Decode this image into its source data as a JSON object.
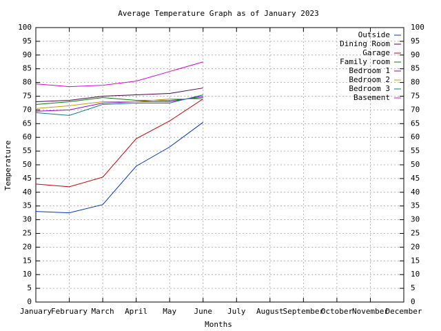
{
  "chart_data": {
    "type": "line",
    "title": "Average Temperature Graph as of January 2023",
    "x_label": "Months",
    "y_label": "Temperature",
    "categories": [
      "January",
      "February",
      "March",
      "April",
      "May",
      "June",
      "July",
      "August",
      "September",
      "October",
      "November",
      "December"
    ],
    "ylim": [
      0,
      100
    ],
    "yticks": [
      0,
      5,
      10,
      15,
      20,
      25,
      30,
      35,
      40,
      45,
      50,
      55,
      60,
      65,
      70,
      75,
      80,
      85,
      90,
      95,
      100
    ],
    "grid": true,
    "legend": "top-right",
    "series": [
      {
        "name": "Outside",
        "color": "#0033cc",
        "values": [
          33,
          32.5,
          35.5,
          49.5,
          56.5,
          65.5,
          null,
          null,
          null,
          null,
          null,
          null
        ]
      },
      {
        "name": "Dining Room",
        "color": "#4b0046",
        "values": [
          73,
          73.5,
          75,
          75.5,
          76,
          78,
          null,
          null,
          null,
          null,
          null,
          null
        ]
      },
      {
        "name": "Garage",
        "color": "#cc0000",
        "values": [
          43,
          42,
          45.5,
          59.5,
          66,
          74,
          null,
          null,
          null,
          null,
          null,
          null
        ]
      },
      {
        "name": "Family room",
        "color": "#008000",
        "values": [
          72,
          73,
          74.5,
          73.5,
          73.5,
          74.5,
          null,
          null,
          null,
          null,
          null,
          null
        ]
      },
      {
        "name": "Bedroom 1",
        "color": "#9900cc",
        "values": [
          69.5,
          70,
          72.5,
          73,
          73,
          75,
          null,
          null,
          null,
          null,
          null,
          null
        ]
      },
      {
        "name": "Bedroom 2",
        "color": "#cc9900",
        "values": [
          70.5,
          71.5,
          73,
          73,
          74,
          74,
          null,
          null,
          null,
          null,
          null,
          null
        ]
      },
      {
        "name": "Bedroom 3",
        "color": "#008080",
        "values": [
          69,
          68,
          72,
          72.5,
          72.5,
          75.5,
          null,
          null,
          null,
          null,
          null,
          null
        ]
      },
      {
        "name": "Basement",
        "color": "#e000e0",
        "values": [
          79.5,
          78.5,
          79,
          80.5,
          84,
          87.5,
          null,
          null,
          null,
          null,
          null,
          null
        ]
      }
    ]
  }
}
